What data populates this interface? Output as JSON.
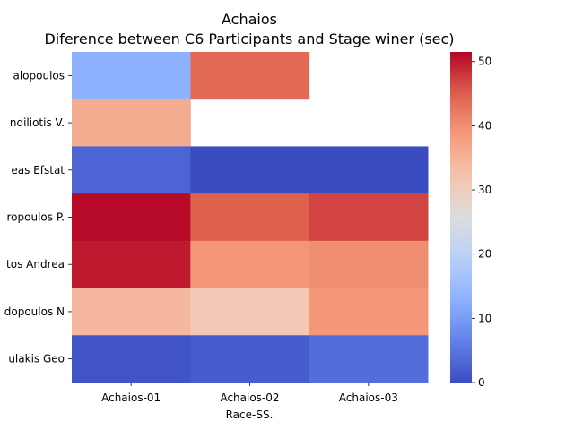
{
  "chart_data": {
    "type": "heatmap",
    "title": "Achaios",
    "subtitle": "Diference between C6 Participants and Stage winer (sec)",
    "xlabel": "Race-SS.",
    "ylabel": "",
    "columns": [
      "Achaios-01",
      "Achaios-02",
      "Achaios-03"
    ],
    "rows": [
      "alopoulos ",
      "ndiliotis V.",
      "eas Efstat",
      "ropoulos P.",
      "tos Andrea",
      "dopoulos N",
      "ulakis Geo"
    ],
    "values": [
      [
        13,
        44,
        null
      ],
      [
        36,
        null,
        null
      ],
      [
        3,
        0,
        0
      ],
      [
        51,
        45,
        47
      ],
      [
        50,
        39,
        40
      ],
      [
        34,
        31,
        39
      ],
      [
        1,
        2,
        4
      ]
    ],
    "colorbar": {
      "min": 0,
      "max": 51.5,
      "ticks": [
        0,
        10,
        20,
        30,
        40,
        50
      ],
      "colormap": "coolwarm"
    }
  }
}
